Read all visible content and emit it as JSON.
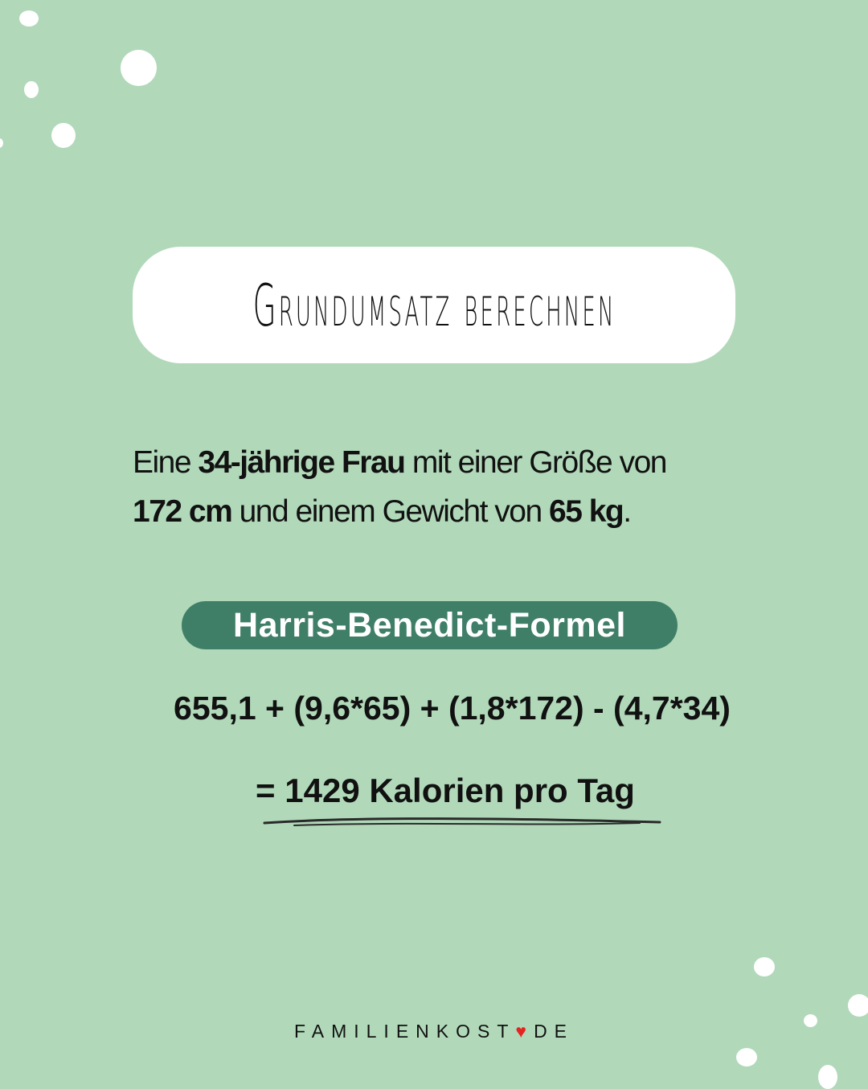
{
  "title": "Grundumsatz berechnen",
  "intro": {
    "t1": "Eine ",
    "b1": "34-jährige Frau",
    "t2": " mit einer Größe von ",
    "b2": "172 cm",
    "t3": " und einem Gewicht von ",
    "b3": "65 kg",
    "t4": "."
  },
  "formula_name": "Harris-Benedict-Formel",
  "formula": "655,1 + (9,6*65) + (1,8*172) - (4,7*34)",
  "result": "= 1429 Kalorien pro Tag",
  "footer": {
    "left": "FAMILIENKOST",
    "right": "DE",
    "heart_icon": "heart-icon"
  },
  "colors": {
    "background": "#b1d9b9",
    "pill": "#3f7f68",
    "heart": "#e52421"
  }
}
